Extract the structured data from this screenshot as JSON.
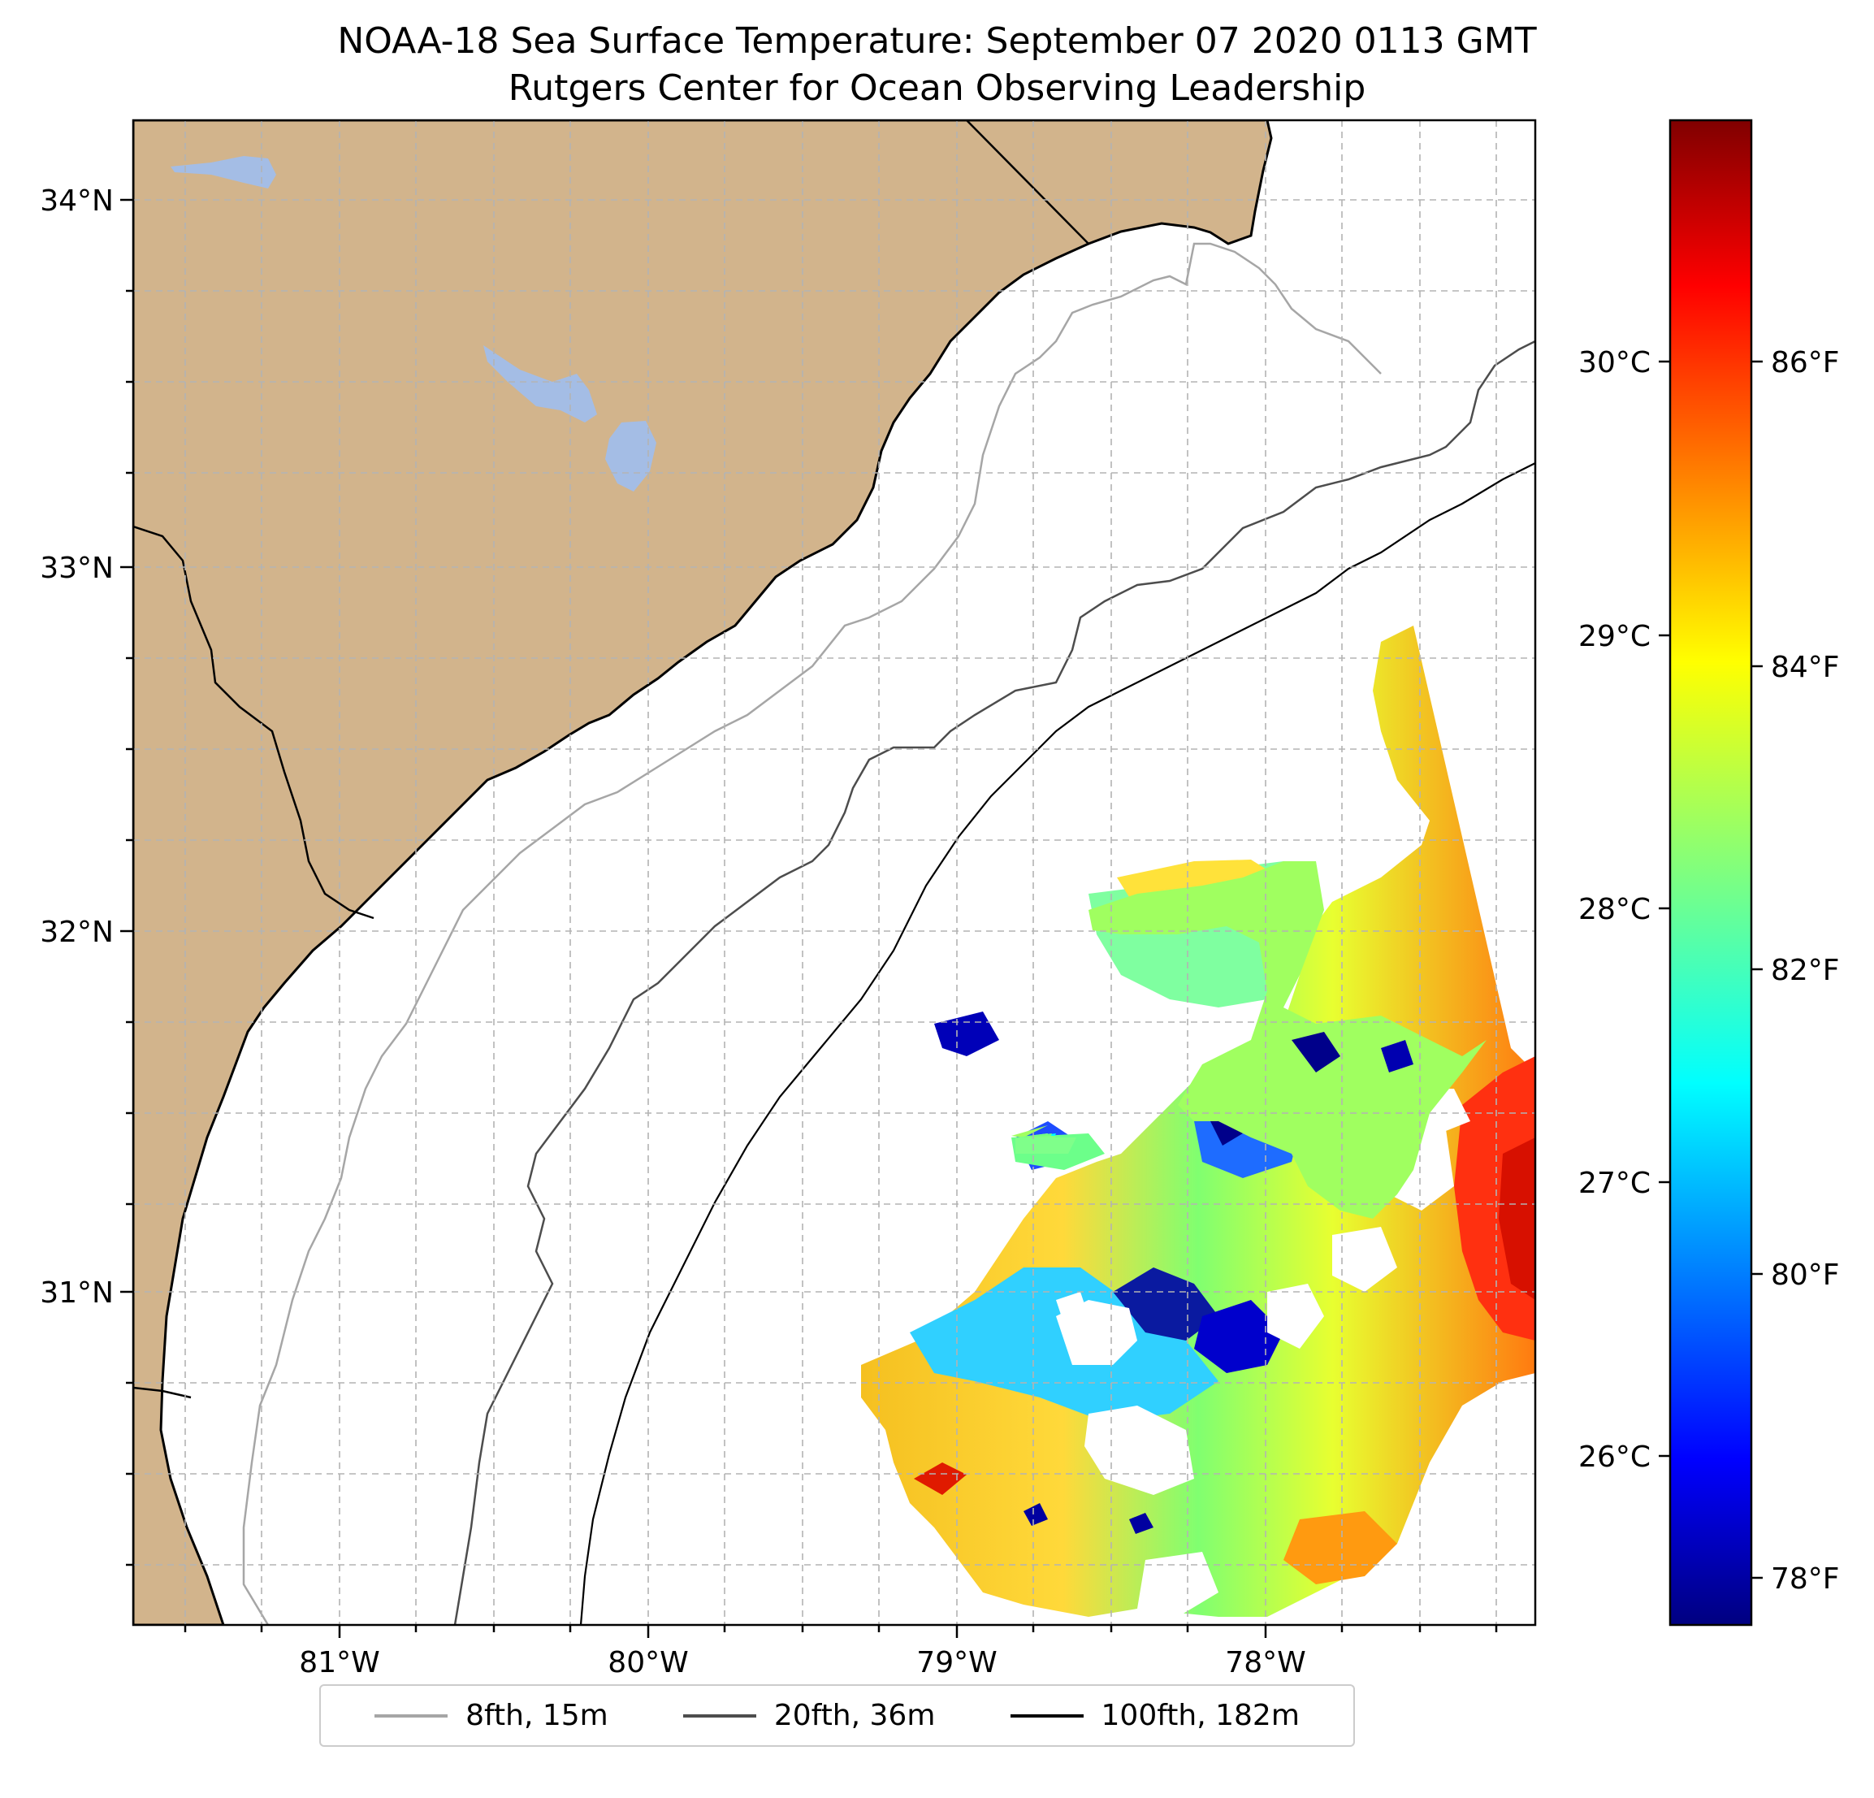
{
  "title": {
    "line1": "NOAA-18 Sea Surface Temperature: September 07 2020 0113 GMT",
    "line2": "Rutgers Center for Ocean Observing Leadership"
  },
  "axes": {
    "lat_ticks": [
      "34°N",
      "33°N",
      "32°N",
      "31°N"
    ],
    "lon_ticks": [
      "81°W",
      "80°W",
      "79°W",
      "78°W"
    ]
  },
  "colorbar": {
    "celsius_ticks": [
      "30°C",
      "29°C",
      "28°C",
      "27°C",
      "26°C"
    ],
    "fahrenheit_ticks": [
      "86°F",
      "84°F",
      "82°F",
      "80°F",
      "78°F"
    ],
    "colormap": "jet"
  },
  "legend": {
    "items": [
      {
        "label": "8fth, 15m",
        "color": "#a6a6a6"
      },
      {
        "label": "20fth, 36m",
        "color": "#4d4d4d"
      },
      {
        "label": "100fth, 182m",
        "color": "#000000"
      }
    ]
  },
  "colors": {
    "land": "#d2b48c",
    "water_bodies": "#a4bde5"
  }
}
